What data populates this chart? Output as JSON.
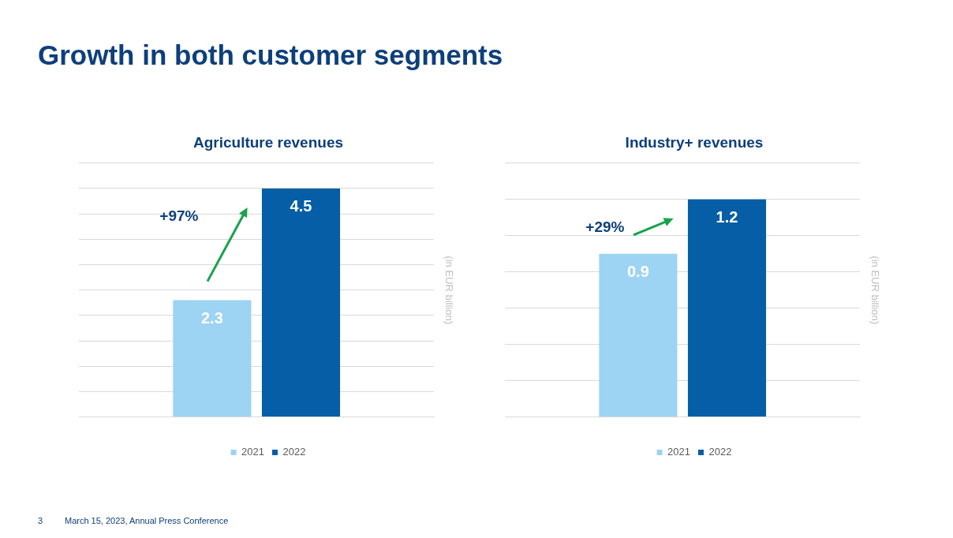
{
  "chart_data": [
    {
      "type": "other",
      "title": "Growth in both customer segments",
      "annotations": [
        "3",
        "March 15, 2023, Annual Press Conference"
      ]
    },
    {
      "type": "bar",
      "title": "Agriculture revenues",
      "ylabel": "(in EUR billion)",
      "categories": [
        null
      ],
      "series": [
        {
          "name": "2021",
          "color": "#9dd3f3",
          "values": [
            2.3
          ]
        },
        {
          "name": "2022",
          "color": "#055ea6",
          "values": [
            4.5
          ]
        }
      ],
      "ylim": [
        0,
        5
      ],
      "yticks": [
        {
          "value": 0,
          "label": null
        },
        {
          "value": 0.5,
          "label": null
        },
        {
          "value": 1,
          "label": null
        },
        {
          "value": 1.5,
          "label": null
        },
        {
          "value": 2,
          "label": null
        },
        {
          "value": 2.5,
          "label": null
        },
        {
          "value": 3,
          "label": null
        },
        {
          "value": 3.5,
          "label": null
        },
        {
          "value": 4,
          "label": null
        },
        {
          "value": 4.5,
          "label": null
        },
        {
          "value": 5,
          "label": null
        }
      ],
      "grid": "y",
      "legend": "bottom",
      "data_labels": true,
      "annotations": [
        "+97%"
      ]
    },
    {
      "type": "bar",
      "title": "Industry+ revenues",
      "ylabel": "(in EUR billion)",
      "categories": [
        null
      ],
      "series": [
        {
          "name": "2021",
          "color": "#9dd3f3",
          "values": [
            0.9
          ]
        },
        {
          "name": "2022",
          "color": "#055ea6",
          "values": [
            1.2
          ]
        }
      ],
      "ylim": [
        0,
        1.4
      ],
      "yticks": [
        {
          "value": 0,
          "label": null
        },
        {
          "value": 0.2,
          "label": null
        },
        {
          "value": 0.4,
          "label": null
        },
        {
          "value": 0.6,
          "label": null
        },
        {
          "value": 0.8,
          "label": null
        },
        {
          "value": 1,
          "label": null
        },
        {
          "value": 1.2,
          "label": null
        },
        {
          "value": 1.4,
          "label": null
        }
      ],
      "grid": "y",
      "legend": "bottom",
      "data_labels": true,
      "annotations": [
        "+29%"
      ]
    }
  ]
}
